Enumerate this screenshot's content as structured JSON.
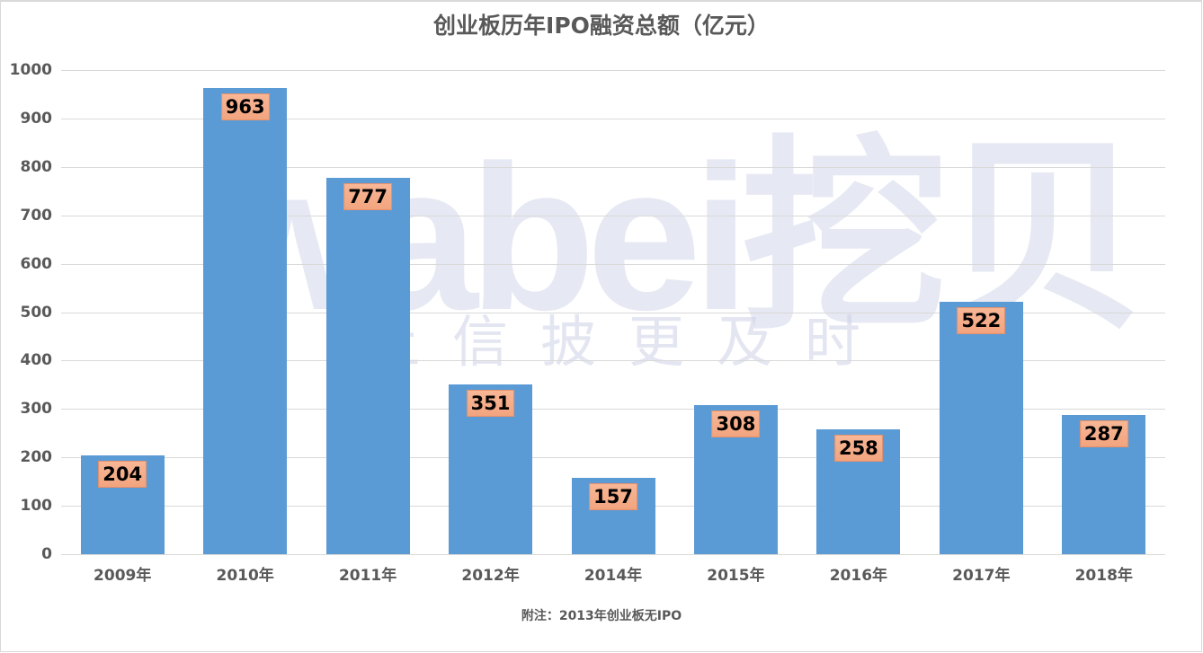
{
  "chart_data": {
    "type": "bar",
    "title": "创业板历年IPO融资总额（亿元）",
    "categories": [
      "2009年",
      "2010年",
      "2011年",
      "2012年",
      "2014年",
      "2015年",
      "2016年",
      "2017年",
      "2018年"
    ],
    "values": [
      204,
      963,
      777,
      351,
      157,
      308,
      258,
      522,
      287
    ],
    "xlabel": "",
    "ylabel": "",
    "ylim": [
      0,
      1000
    ],
    "yticks": [
      0,
      100,
      200,
      300,
      400,
      500,
      600,
      700,
      800,
      900,
      1000
    ],
    "grid": true,
    "legend": null,
    "data_labels": true,
    "bar_color": "#5b9bd5",
    "label_bg_color": "#f4b08a",
    "annotation": "附注：2013年创业板无IPO"
  },
  "title": "创业板历年IPO融资总额（亿元）",
  "yaxis": {
    "ticks": [
      "0",
      "100",
      "200",
      "300",
      "400",
      "500",
      "600",
      "700",
      "800",
      "900",
      "1000"
    ]
  },
  "bars": [
    {
      "category": "2009年",
      "value": "204"
    },
    {
      "category": "2010年",
      "value": "963"
    },
    {
      "category": "2011年",
      "value": "777"
    },
    {
      "category": "2012年",
      "value": "351"
    },
    {
      "category": "2014年",
      "value": "157"
    },
    {
      "category": "2015年",
      "value": "308"
    },
    {
      "category": "2016年",
      "value": "258"
    },
    {
      "category": "2017年",
      "value": "522"
    },
    {
      "category": "2018年",
      "value": "287"
    }
  ],
  "note": "附注：2013年创业板无IPO",
  "watermark": {
    "main": "wabei挖贝",
    "sub": "让信披更及时"
  }
}
